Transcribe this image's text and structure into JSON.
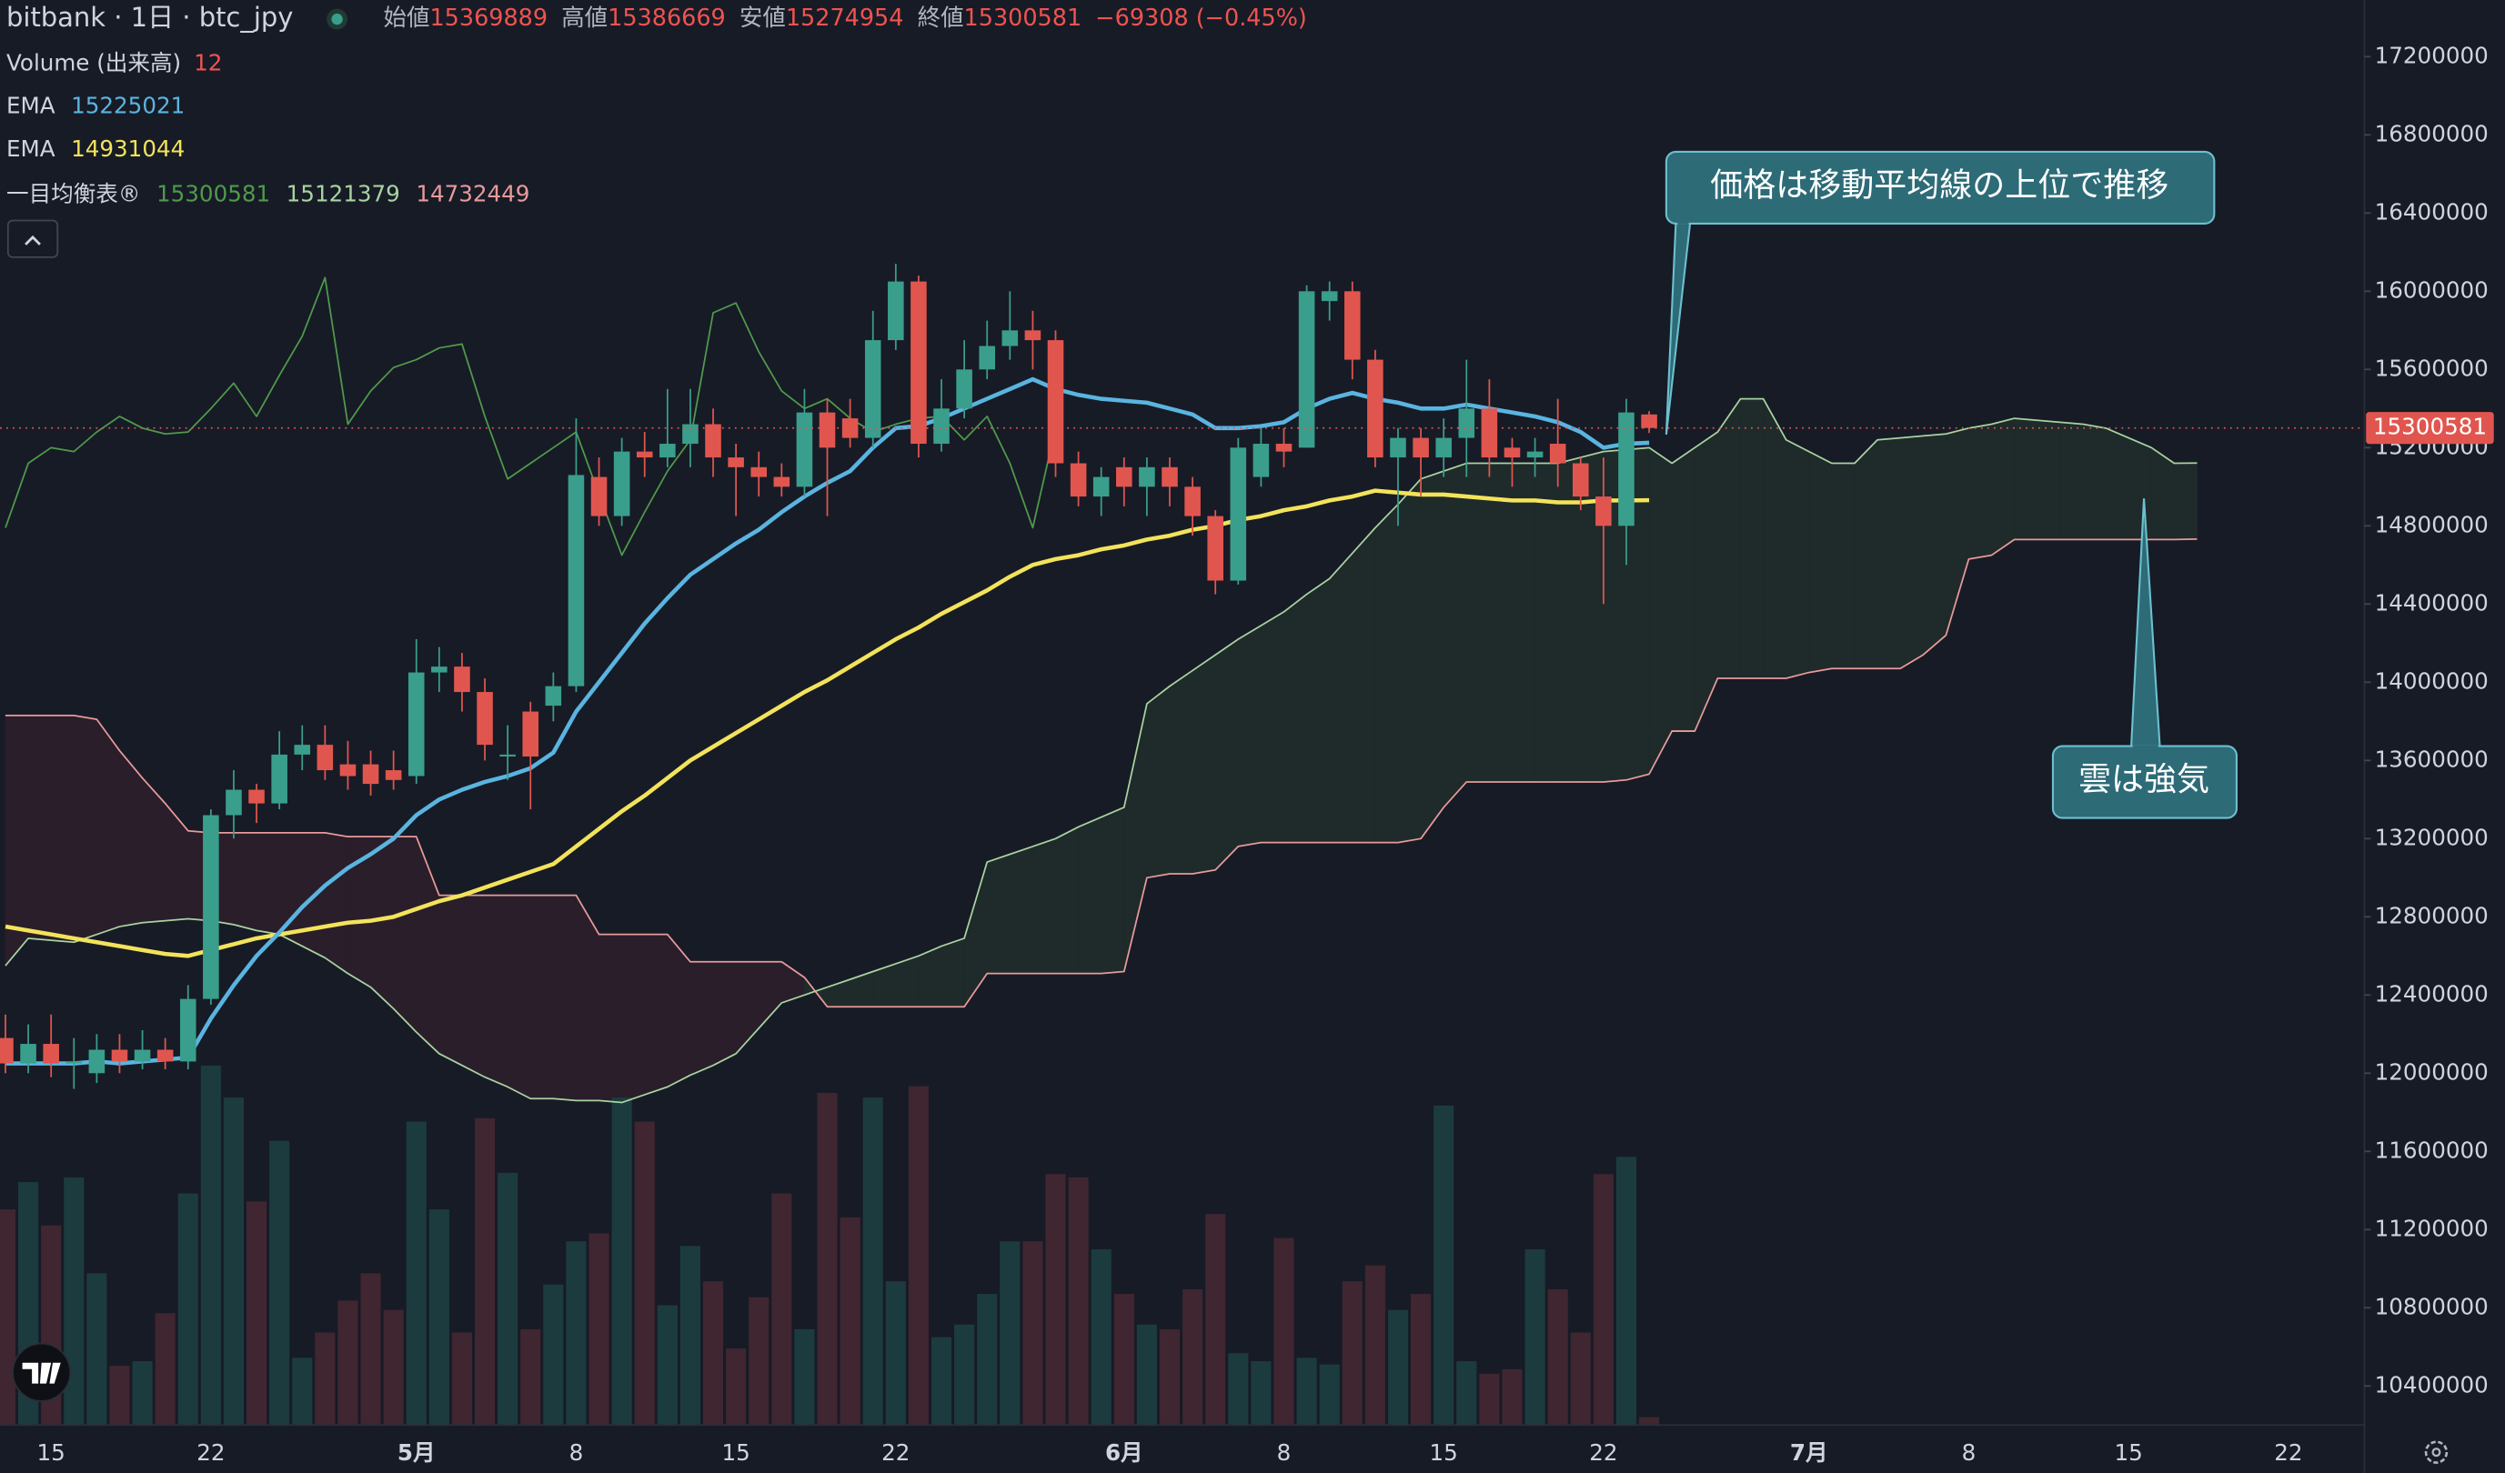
{
  "header": {
    "symbol": "bitbank · 1日 · btc_jpy",
    "labels": [
      "始値",
      "高値",
      "安値",
      "終値"
    ],
    "change": "−69308 (−0.45%)"
  },
  "annotations": [
    {
      "text": "価格は移動平均線の上位で推移"
    },
    {
      "text": "雲は強気"
    }
  ],
  "chart_data": {
    "type": "candlestick",
    "categories": [
      null,
      null,
      "15",
      null,
      null,
      null,
      null,
      null,
      null,
      "22",
      null,
      null,
      null,
      null,
      null,
      null,
      null,
      null,
      "5月",
      null,
      null,
      null,
      null,
      null,
      null,
      "8",
      null,
      null,
      null,
      null,
      null,
      null,
      "15",
      null,
      null,
      null,
      null,
      null,
      null,
      "22",
      null,
      null,
      null,
      null,
      null,
      null,
      null,
      null,
      null,
      "6月",
      null,
      null,
      null,
      null,
      null,
      null,
      "8",
      null,
      null,
      null,
      null,
      null,
      null,
      "15",
      null,
      null,
      null,
      null,
      null,
      null,
      "22",
      null,
      null,
      null,
      null,
      null,
      null,
      null,
      null,
      "7月",
      null,
      null,
      null,
      null,
      null,
      null,
      "8",
      null,
      null,
      null,
      null,
      null,
      null,
      "15",
      null,
      null,
      null,
      null,
      null,
      null,
      "22"
    ],
    "up_color": "#3a9e8c",
    "down_color": "#e0564f",
    "open": [
      12180000,
      12050000,
      12150000,
      12050000,
      12000000,
      12120000,
      12060000,
      12120000,
      12060000,
      12380000,
      13320000,
      13450000,
      13380000,
      13630000,
      13680000,
      13580000,
      13580000,
      13550000,
      13520000,
      14050000,
      14080000,
      13950000,
      13620000,
      13850000,
      13880000,
      13980000,
      15050000,
      14850000,
      15180000,
      15150000,
      15220000,
      15320000,
      15150000,
      15100000,
      15050000,
      15000000,
      15380000,
      15350000,
      15250000,
      15750000,
      16050000,
      15220000,
      15400000,
      15600000,
      15720000,
      15800000,
      15750000,
      15120000,
      14950000,
      15100000,
      15000000,
      15100000,
      15000000,
      14850000,
      14520000,
      15050000,
      15220000,
      15200000,
      15950000,
      16000000,
      15650000,
      15150000,
      15250000,
      15150000,
      15250000,
      15400000,
      15200000,
      15150000,
      15220000,
      15120000,
      14950000,
      14800000,
      15369889,
      null,
      null,
      null,
      null,
      null,
      null,
      null,
      null,
      null,
      null,
      null,
      null,
      null,
      null,
      null,
      null,
      null,
      null,
      null,
      null,
      null,
      null,
      null,
      null,
      null,
      null,
      null,
      null
    ],
    "high": [
      12300000,
      12250000,
      12300000,
      12180000,
      12200000,
      12200000,
      12220000,
      12180000,
      12450000,
      13350000,
      13550000,
      13480000,
      13750000,
      13780000,
      13780000,
      13700000,
      13650000,
      13650000,
      14220000,
      14180000,
      14150000,
      14020000,
      13780000,
      13900000,
      14050000,
      15350000,
      15150000,
      15250000,
      15280000,
      15500000,
      15500000,
      15400000,
      15220000,
      15180000,
      15120000,
      15500000,
      15450000,
      15450000,
      15900000,
      16140000,
      16080000,
      15550000,
      15750000,
      15850000,
      16000000,
      15900000,
      15800000,
      15180000,
      15100000,
      15150000,
      15150000,
      15150000,
      15050000,
      14880000,
      15250000,
      15300000,
      15300000,
      16030000,
      16050000,
      16050000,
      15700000,
      15300000,
      15300000,
      15350000,
      15650000,
      15550000,
      15250000,
      15250000,
      15450000,
      15150000,
      15150000,
      15450000,
      15386669,
      null,
      null,
      null,
      null,
      null,
      null,
      null,
      null,
      null,
      null,
      null,
      null,
      null,
      null,
      null,
      null,
      null,
      null,
      null,
      null,
      null,
      null,
      null,
      null,
      null,
      null,
      null,
      null
    ],
    "low": [
      12000000,
      12000000,
      11980000,
      11920000,
      11950000,
      12000000,
      12020000,
      12020000,
      12020000,
      12350000,
      13200000,
      13280000,
      13350000,
      13550000,
      13500000,
      13450000,
      13420000,
      13450000,
      13480000,
      13950000,
      13850000,
      13600000,
      13500000,
      13350000,
      13800000,
      13950000,
      14800000,
      14800000,
      15050000,
      15100000,
      15100000,
      15050000,
      14850000,
      14950000,
      14950000,
      14950000,
      14850000,
      15200000,
      15200000,
      15700000,
      15150000,
      15180000,
      15350000,
      15550000,
      15650000,
      15600000,
      15050000,
      14900000,
      14850000,
      14900000,
      14850000,
      14900000,
      14750000,
      14450000,
      14500000,
      15000000,
      15100000,
      15200000,
      15850000,
      15550000,
      15100000,
      14800000,
      14950000,
      15050000,
      15050000,
      15050000,
      15000000,
      15050000,
      15000000,
      14880000,
      14400000,
      14600000,
      15274954,
      null,
      null,
      null,
      null,
      null,
      null,
      null,
      null,
      null,
      null,
      null,
      null,
      null,
      null,
      null,
      null,
      null,
      null,
      null,
      null,
      null,
      null,
      null,
      null,
      null,
      null,
      null,
      null
    ],
    "close": [
      12050000,
      12150000,
      12050000,
      12060000,
      12120000,
      12060000,
      12120000,
      12060000,
      12380000,
      13320000,
      13450000,
      13380000,
      13630000,
      13680000,
      13550000,
      13520000,
      13480000,
      13500000,
      14050000,
      14080000,
      13950000,
      13680000,
      13630000,
      13620000,
      13980000,
      15060000,
      14850000,
      15180000,
      15150000,
      15220000,
      15320000,
      15150000,
      15100000,
      15050000,
      15000000,
      15380000,
      15200000,
      15250000,
      15750000,
      16050000,
      15220000,
      15400000,
      15600000,
      15720000,
      15800000,
      15750000,
      15120000,
      14950000,
      15050000,
      15000000,
      15100000,
      15000000,
      14850000,
      14520000,
      15200000,
      15220000,
      15180000,
      16000000,
      16000000,
      15650000,
      15150000,
      15250000,
      15150000,
      15250000,
      15400000,
      15150000,
      15150000,
      15180000,
      15120000,
      14950000,
      14800000,
      15380000,
      15300581,
      null,
      null,
      null,
      null,
      null,
      null,
      null,
      null,
      null,
      null,
      null,
      null,
      null,
      null,
      null,
      null,
      null,
      null,
      null,
      null,
      null,
      null,
      null,
      null,
      null,
      null,
      null,
      null
    ],
    "volume": {
      "name": "Volume (出来高)",
      "up_color": "#1c3b3f",
      "down_color": "#3f2630",
      "values": [
        324,
        365,
        300,
        372,
        228,
        89,
        96,
        168,
        348,
        540,
        492,
        336,
        427,
        101,
        139,
        187,
        228,
        173,
        456,
        324,
        139,
        461,
        379,
        144,
        211,
        276,
        288,
        492,
        456,
        180,
        269,
        216,
        115,
        192,
        348,
        144,
        499,
        312,
        492,
        216,
        509,
        132,
        151,
        197,
        276,
        276,
        377,
        372,
        264,
        197,
        151,
        144,
        204,
        317,
        108,
        96,
        281,
        101,
        91,
        216,
        240,
        173,
        197,
        480,
        96,
        77,
        84,
        264,
        204,
        139,
        377,
        403,
        12,
        null,
        null,
        null,
        null,
        null,
        null,
        null,
        null,
        null,
        null,
        null,
        null,
        null,
        null,
        null,
        null,
        null,
        null,
        null,
        null,
        null,
        null,
        null,
        null,
        null,
        null,
        null,
        null
      ]
    },
    "series": [
      {
        "name": "EMA",
        "color": "#5ab4e0",
        "values": [
          12050000,
          12050000,
          12050000,
          12050000,
          12060000,
          12050000,
          12060000,
          12070000,
          12080000,
          12280000,
          12450000,
          12600000,
          12720000,
          12850000,
          12960000,
          13050000,
          13120000,
          13200000,
          13320000,
          13400000,
          13450000,
          13490000,
          13520000,
          13560000,
          13640000,
          13850000,
          14000000,
          14150000,
          14300000,
          14430000,
          14550000,
          14630000,
          14710000,
          14780000,
          14870000,
          14950000,
          15020000,
          15080000,
          15200000,
          15300000,
          15310000,
          15350000,
          15400000,
          15450000,
          15500000,
          15550000,
          15500000,
          15470000,
          15450000,
          15440000,
          15430000,
          15400000,
          15370000,
          15300000,
          15300000,
          15310000,
          15330000,
          15400000,
          15450000,
          15480000,
          15450000,
          15430000,
          15400000,
          15400000,
          15420000,
          15400000,
          15380000,
          15360000,
          15330000,
          15280000,
          15200000,
          15220000,
          15225021,
          null,
          null,
          null,
          null,
          null,
          null,
          null,
          null,
          null,
          null,
          null,
          null,
          null,
          null,
          null,
          null,
          null,
          null,
          null,
          null,
          null,
          null,
          null,
          null,
          null,
          null,
          null,
          null
        ]
      },
      {
        "name": "EMA",
        "color": "#f3e35a",
        "values": [
          12750000,
          12730000,
          12710000,
          12690000,
          12670000,
          12650000,
          12630000,
          12610000,
          12600000,
          12630000,
          12660000,
          12690000,
          12710000,
          12730000,
          12750000,
          12770000,
          12780000,
          12800000,
          12840000,
          12880000,
          12910000,
          12950000,
          12990000,
          13030000,
          13070000,
          13160000,
          13250000,
          13340000,
          13420000,
          13510000,
          13600000,
          13670000,
          13740000,
          13810000,
          13880000,
          13950000,
          14010000,
          14080000,
          14150000,
          14220000,
          14280000,
          14350000,
          14410000,
          14470000,
          14540000,
          14600000,
          14630000,
          14650000,
          14680000,
          14700000,
          14730000,
          14750000,
          14780000,
          14800000,
          14830000,
          14850000,
          14880000,
          14900000,
          14930000,
          14950000,
          14980000,
          14970000,
          14960000,
          14960000,
          14950000,
          14940000,
          14930000,
          14930000,
          14920000,
          14920000,
          14930000,
          14930000,
          14931044,
          null,
          null,
          null,
          null,
          null,
          null,
          null,
          null,
          null,
          null,
          null,
          null,
          null,
          null,
          null,
          null,
          null,
          null,
          null,
          null,
          null,
          null,
          null,
          null,
          null,
          null,
          null,
          null
        ]
      }
    ],
    "ichimoku": {
      "name": "一目均衡表®",
      "bull_fill": "#1f2a2a",
      "bear_fill": "#2a1e2a",
      "lagging": {
        "color": "#4f9a4b",
        "values": [
          14790000,
          15120000,
          15200000,
          15180000,
          15280000,
          15360000,
          15300000,
          15270000,
          15280000,
          15400000,
          15530000,
          15360000,
          15570000,
          15770000,
          16070000,
          15320000,
          15490000,
          15610000,
          15650000,
          15710000,
          15730000,
          15360000,
          15040000,
          15120000,
          15200000,
          15280000,
          14960000,
          14650000,
          14870000,
          15080000,
          15240000,
          15890000,
          15940000,
          15690000,
          15490000,
          15400000,
          15450000,
          15350000,
          15280000,
          15320000,
          15350000,
          15360000,
          15240000,
          15360000,
          15120000,
          14790000,
          15300581,
          null,
          null,
          null,
          null,
          null,
          null,
          null,
          null,
          null,
          null,
          null,
          null,
          null,
          null,
          null,
          null,
          null,
          null,
          null,
          null,
          null,
          null,
          null,
          null,
          null,
          null,
          null,
          null,
          null,
          null,
          null,
          null,
          null,
          null,
          null,
          null,
          null,
          null,
          null,
          null,
          null,
          null,
          null,
          null,
          null,
          null,
          null,
          null,
          null,
          null,
          null,
          null,
          null,
          null
        ]
      },
      "span_a": {
        "color": "#a8d3a0",
        "values": [
          12550000,
          12690000,
          12680000,
          12670000,
          12710000,
          12750000,
          12770000,
          12780000,
          12790000,
          12780000,
          12760000,
          12730000,
          12710000,
          12650000,
          12590000,
          12510000,
          12440000,
          12330000,
          12210000,
          12100000,
          12040000,
          11980000,
          11930000,
          11870000,
          11870000,
          11860000,
          11860000,
          11850000,
          11890000,
          11930000,
          11990000,
          12040000,
          12100000,
          12230000,
          12360000,
          12400000,
          12440000,
          12480000,
          12520000,
          12560000,
          12600000,
          12650000,
          12690000,
          13080000,
          13120000,
          13160000,
          13200000,
          13260000,
          13310000,
          13360000,
          13890000,
          13980000,
          14060000,
          14140000,
          14220000,
          14290000,
          14360000,
          14450000,
          14530000,
          14660000,
          14790000,
          14910000,
          15040000,
          15080000,
          15120000,
          15120000,
          15120000,
          15120000,
          15120000,
          15150000,
          15180000,
          15190000,
          15200000,
          15120000,
          15200000,
          15280000,
          15450000,
          15450000,
          15240000,
          15180000,
          15120000,
          15120000,
          15240000,
          15250000,
          15260000,
          15270000,
          15300000,
          15320000,
          15350000,
          15340000,
          15330000,
          15320000,
          15300000,
          15250000,
          15200000,
          15120000,
          15121379,
          null,
          null,
          null,
          null
        ]
      },
      "span_b": {
        "color": "#e89a9a",
        "values": [
          13830000,
          13830000,
          13830000,
          13830000,
          13810000,
          13650000,
          13510000,
          13380000,
          13240000,
          13230000,
          13230000,
          13230000,
          13230000,
          13230000,
          13230000,
          13210000,
          13210000,
          13210000,
          13210000,
          12910000,
          12910000,
          12910000,
          12910000,
          12910000,
          12910000,
          12910000,
          12710000,
          12710000,
          12710000,
          12710000,
          12570000,
          12570000,
          12570000,
          12570000,
          12570000,
          12490000,
          12340000,
          12340000,
          12340000,
          12340000,
          12340000,
          12340000,
          12340000,
          12510000,
          12510000,
          12510000,
          12510000,
          12510000,
          12510000,
          12520000,
          13000000,
          13020000,
          13020000,
          13040000,
          13160000,
          13180000,
          13180000,
          13180000,
          13180000,
          13180000,
          13180000,
          13180000,
          13200000,
          13360000,
          13490000,
          13490000,
          13490000,
          13490000,
          13490000,
          13490000,
          13490000,
          13500000,
          13530000,
          13750000,
          13750000,
          14020000,
          14020000,
          14020000,
          14020000,
          14050000,
          14070000,
          14070000,
          14070000,
          14070000,
          14140000,
          14240000,
          14630000,
          14650000,
          14730000,
          14730000,
          14730000,
          14730000,
          14730000,
          14730000,
          14730000,
          14730000,
          14732449,
          null,
          null,
          null,
          null
        ]
      }
    },
    "ylim": [
      10200000,
      17490000
    ],
    "yticks": [
      10400000,
      10800000,
      11200000,
      11600000,
      12000000,
      12400000,
      12800000,
      13200000,
      13600000,
      14000000,
      14400000,
      14800000,
      15200000,
      15600000,
      16000000,
      16400000,
      16800000,
      17200000
    ]
  }
}
